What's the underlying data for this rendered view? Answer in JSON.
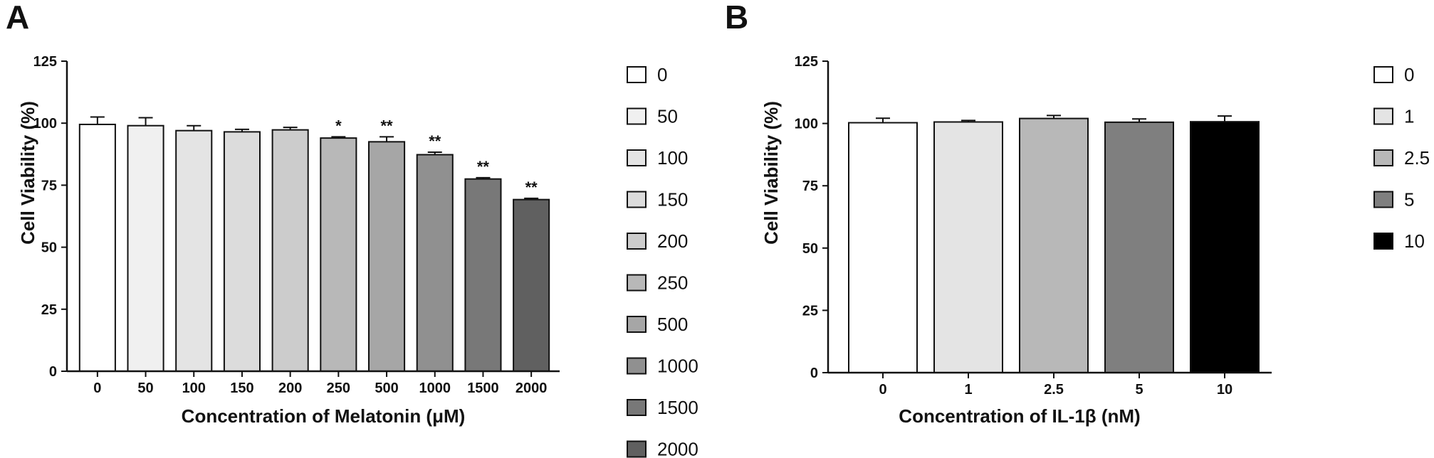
{
  "chart_data": [
    {
      "panel": "A",
      "type": "bar",
      "categories": [
        "0",
        "50",
        "100",
        "150",
        "200",
        "250",
        "500",
        "1000",
        "1500",
        "2000"
      ],
      "values": [
        99.5,
        99.0,
        97.0,
        96.5,
        97.3,
        94.0,
        92.5,
        87.3,
        77.5,
        69.2
      ],
      "errors": [
        3.0,
        3.2,
        2.0,
        1.0,
        1.0,
        0.5,
        2.0,
        1.0,
        0.5,
        0.5
      ],
      "significance": [
        "",
        "",
        "",
        "",
        "",
        "*",
        "**",
        "**",
        "**",
        "**"
      ],
      "colors": [
        "#ffffff",
        "#f0f0f0",
        "#e4e4e4",
        "#dcdcdc",
        "#cccccc",
        "#b8b8b8",
        "#a6a6a6",
        "#909090",
        "#787878",
        "#606060"
      ],
      "xlabel": "Concentration of Melatonin (μM)",
      "ylabel": "Cell Viability (%)",
      "ylim": [
        0,
        125
      ],
      "yticks": [
        "0",
        "25",
        "50",
        "75",
        "100",
        "125"
      ],
      "legend": [
        "0",
        "50",
        "100",
        "150",
        "200",
        "250",
        "500",
        "1000",
        "1500",
        "2000"
      ],
      "legend_position": "right",
      "grid": false
    },
    {
      "panel": "B",
      "type": "bar",
      "categories": [
        "0",
        "1",
        "2.5",
        "5",
        "10"
      ],
      "values": [
        100.3,
        100.6,
        102.0,
        100.5,
        100.7
      ],
      "errors": [
        1.8,
        0.6,
        1.2,
        1.3,
        2.3
      ],
      "colors": [
        "#ffffff",
        "#e4e4e4",
        "#b8b8b8",
        "#7f7f7f",
        "#000000"
      ],
      "xlabel": "Concentration of IL-1β (nM)",
      "ylabel": "Cell Viability (%)",
      "ylim": [
        0,
        125
      ],
      "yticks": [
        "0",
        "25",
        "50",
        "75",
        "100",
        "125"
      ],
      "legend": [
        "0",
        "1",
        "2.5",
        "5",
        "10"
      ],
      "legend_position": "right",
      "grid": false
    }
  ]
}
